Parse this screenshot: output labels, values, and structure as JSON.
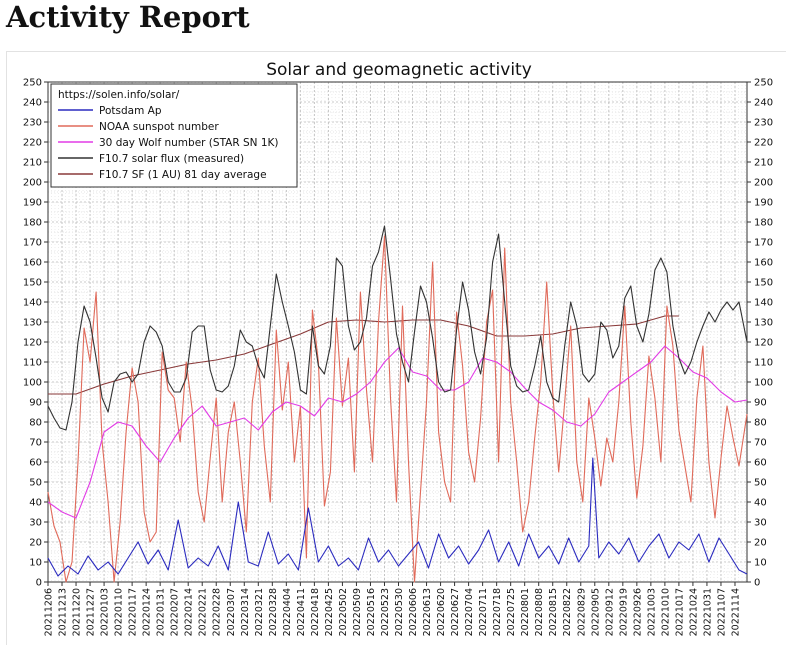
{
  "page": {
    "heading": "Activity Report"
  },
  "chart_data": {
    "type": "line",
    "title": "Solar and geomagnetic activity",
    "source_label": "https://solen.info/solar/",
    "xlabel": "",
    "ylabel": "",
    "ylim": [
      0,
      250
    ],
    "y_ticks": [
      0,
      10,
      20,
      30,
      40,
      50,
      60,
      70,
      80,
      90,
      100,
      110,
      120,
      130,
      140,
      150,
      160,
      170,
      180,
      190,
      200,
      210,
      220,
      230,
      240,
      250
    ],
    "grid": true,
    "legend_position": "top-left",
    "x_start": "2021-12-06",
    "x_end": "2022-11-20",
    "x_tick_labels": [
      "20211206",
      "20211213",
      "20211220",
      "20211227",
      "20220103",
      "20220110",
      "20220117",
      "20220124",
      "20220131",
      "20220207",
      "20220214",
      "20220221",
      "20220228",
      "20220307",
      "20220314",
      "20220321",
      "20220328",
      "20220404",
      "20220411",
      "20220418",
      "20220425",
      "20220502",
      "20220509",
      "20220516",
      "20220523",
      "20220530",
      "20220606",
      "20220613",
      "20220620",
      "20220627",
      "20220704",
      "20220711",
      "20220718",
      "20220725",
      "20220801",
      "20220808",
      "20220815",
      "20220822",
      "20220829",
      "20220905",
      "20220912",
      "20220919",
      "20220926",
      "20221003",
      "20221010",
      "20221017",
      "20221024",
      "20221031",
      "20221107",
      "20221114"
    ],
    "series": [
      {
        "name": "Potsdam Ap",
        "color": "#2b2bbf",
        "x": [
          "2021-12-06",
          "2021-12-11",
          "2021-12-16",
          "2021-12-21",
          "2021-12-26",
          "2021-12-31",
          "2022-01-05",
          "2022-01-10",
          "2022-01-15",
          "2022-01-20",
          "2022-01-25",
          "2022-01-30",
          "2022-02-04",
          "2022-02-09",
          "2022-02-14",
          "2022-02-19",
          "2022-02-24",
          "2022-03-01",
          "2022-03-06",
          "2022-03-11",
          "2022-03-16",
          "2022-03-21",
          "2022-03-26",
          "2022-03-31",
          "2022-04-05",
          "2022-04-10",
          "2022-04-15",
          "2022-04-20",
          "2022-04-25",
          "2022-04-30",
          "2022-05-05",
          "2022-05-10",
          "2022-05-15",
          "2022-05-20",
          "2022-05-25",
          "2022-05-30",
          "2022-06-04",
          "2022-06-09",
          "2022-06-14",
          "2022-06-19",
          "2022-06-24",
          "2022-06-29",
          "2022-07-04",
          "2022-07-09",
          "2022-07-14",
          "2022-07-19",
          "2022-07-24",
          "2022-07-29",
          "2022-08-03",
          "2022-08-08",
          "2022-08-13",
          "2022-08-18",
          "2022-08-23",
          "2022-08-28",
          "2022-09-02",
          "2022-09-04",
          "2022-09-07",
          "2022-09-12",
          "2022-09-17",
          "2022-09-22",
          "2022-09-27",
          "2022-10-02",
          "2022-10-07",
          "2022-10-12",
          "2022-10-17",
          "2022-10-22",
          "2022-10-27",
          "2022-11-01",
          "2022-11-06",
          "2022-11-11",
          "2022-11-16",
          "2022-11-20"
        ],
        "values": [
          12,
          3,
          8,
          4,
          13,
          6,
          10,
          4,
          12,
          20,
          9,
          16,
          6,
          31,
          7,
          12,
          8,
          18,
          6,
          40,
          10,
          8,
          25,
          9,
          14,
          6,
          37,
          10,
          18,
          8,
          12,
          6,
          22,
          10,
          16,
          8,
          14,
          20,
          7,
          24,
          12,
          18,
          9,
          16,
          26,
          10,
          20,
          8,
          24,
          12,
          18,
          9,
          22,
          10,
          18,
          62,
          12,
          20,
          14,
          22,
          10,
          18,
          24,
          12,
          20,
          16,
          24,
          10,
          22,
          14,
          6,
          4
        ]
      },
      {
        "name": "NOAA sunspot number",
        "color": "#e06a5a",
        "x": [
          "2021-12-06",
          "2021-12-09",
          "2021-12-12",
          "2021-12-15",
          "2021-12-18",
          "2021-12-21",
          "2021-12-24",
          "2021-12-27",
          "2021-12-30",
          "2022-01-02",
          "2022-01-05",
          "2022-01-08",
          "2022-01-11",
          "2022-01-14",
          "2022-01-17",
          "2022-01-20",
          "2022-01-23",
          "2022-01-26",
          "2022-01-29",
          "2022-02-01",
          "2022-02-04",
          "2022-02-07",
          "2022-02-10",
          "2022-02-13",
          "2022-02-16",
          "2022-02-19",
          "2022-02-22",
          "2022-02-25",
          "2022-02-28",
          "2022-03-03",
          "2022-03-06",
          "2022-03-09",
          "2022-03-12",
          "2022-03-15",
          "2022-03-18",
          "2022-03-21",
          "2022-03-24",
          "2022-03-27",
          "2022-03-30",
          "2022-04-02",
          "2022-04-05",
          "2022-04-08",
          "2022-04-11",
          "2022-04-14",
          "2022-04-17",
          "2022-04-20",
          "2022-04-23",
          "2022-04-26",
          "2022-04-29",
          "2022-05-02",
          "2022-05-05",
          "2022-05-08",
          "2022-05-11",
          "2022-05-14",
          "2022-05-17",
          "2022-05-20",
          "2022-05-23",
          "2022-05-26",
          "2022-05-29",
          "2022-06-01",
          "2022-06-04",
          "2022-06-07",
          "2022-06-10",
          "2022-06-13",
          "2022-06-16",
          "2022-06-19",
          "2022-06-22",
          "2022-06-25",
          "2022-06-28",
          "2022-07-01",
          "2022-07-04",
          "2022-07-07",
          "2022-07-10",
          "2022-07-13",
          "2022-07-16",
          "2022-07-19",
          "2022-07-22",
          "2022-07-25",
          "2022-07-28",
          "2022-07-31",
          "2022-08-03",
          "2022-08-06",
          "2022-08-09",
          "2022-08-12",
          "2022-08-15",
          "2022-08-18",
          "2022-08-21",
          "2022-08-24",
          "2022-08-27",
          "2022-08-30",
          "2022-09-02",
          "2022-09-05",
          "2022-09-08",
          "2022-09-11",
          "2022-09-14",
          "2022-09-17",
          "2022-09-20",
          "2022-09-23",
          "2022-09-26",
          "2022-09-29",
          "2022-10-02",
          "2022-10-05",
          "2022-10-08",
          "2022-10-11",
          "2022-10-14",
          "2022-10-17",
          "2022-10-20",
          "2022-10-23",
          "2022-10-26",
          "2022-10-29",
          "2022-11-01",
          "2022-11-04",
          "2022-11-07",
          "2022-11-10",
          "2022-11-13",
          "2022-11-16",
          "2022-11-20"
        ],
        "values": [
          45,
          28,
          20,
          0,
          10,
          60,
          127,
          110,
          145,
          70,
          40,
          0,
          30,
          75,
          107,
          90,
          35,
          20,
          25,
          115,
          96,
          92,
          70,
          110,
          86,
          45,
          30,
          62,
          92,
          40,
          75,
          90,
          60,
          25,
          90,
          112,
          68,
          40,
          126,
          86,
          110,
          60,
          88,
          12,
          136,
          110,
          38,
          55,
          132,
          88,
          112,
          55,
          145,
          96,
          60,
          130,
          173,
          92,
          40,
          138,
          60,
          0,
          45,
          90,
          160,
          75,
          50,
          40,
          135,
          108,
          65,
          50,
          82,
          130,
          146,
          60,
          167,
          90,
          60,
          25,
          40,
          72,
          100,
          150,
          95,
          55,
          90,
          128,
          60,
          40,
          92,
          72,
          48,
          72,
          60,
          90,
          138,
          80,
          42,
          68,
          113,
          92,
          60,
          138,
          118,
          76,
          58,
          40,
          92,
          118,
          60,
          32,
          62,
          88,
          72,
          58,
          84
        ]
      },
      {
        "name": "30 day Wolf number (STAR SN 1K)",
        "color": "#e23be6",
        "x": [
          "2021-12-06",
          "2021-12-13",
          "2021-12-20",
          "2021-12-27",
          "2022-01-03",
          "2022-01-10",
          "2022-01-17",
          "2022-01-24",
          "2022-01-31",
          "2022-02-07",
          "2022-02-14",
          "2022-02-21",
          "2022-02-28",
          "2022-03-07",
          "2022-03-14",
          "2022-03-21",
          "2022-03-28",
          "2022-04-04",
          "2022-04-11",
          "2022-04-18",
          "2022-04-25",
          "2022-05-02",
          "2022-05-09",
          "2022-05-16",
          "2022-05-23",
          "2022-05-30",
          "2022-06-06",
          "2022-06-13",
          "2022-06-20",
          "2022-06-27",
          "2022-07-04",
          "2022-07-11",
          "2022-07-18",
          "2022-07-25",
          "2022-08-01",
          "2022-08-08",
          "2022-08-15",
          "2022-08-22",
          "2022-08-29",
          "2022-09-05",
          "2022-09-12",
          "2022-09-19",
          "2022-09-26",
          "2022-10-03",
          "2022-10-10",
          "2022-10-17",
          "2022-10-24",
          "2022-10-31",
          "2022-11-07",
          "2022-11-14",
          "2022-11-20"
        ],
        "values": [
          40,
          35,
          32,
          50,
          75,
          80,
          78,
          68,
          60,
          72,
          82,
          88,
          78,
          80,
          82,
          76,
          85,
          90,
          88,
          83,
          92,
          90,
          94,
          100,
          110,
          117,
          105,
          103,
          96,
          96,
          100,
          112,
          110,
          105,
          97,
          90,
          86,
          80,
          78,
          84,
          95,
          100,
          105,
          110,
          118,
          112,
          105,
          102,
          95,
          90,
          91
        ]
      },
      {
        "name": "F10.7 solar flux (measured)",
        "color": "#333333",
        "x": [
          "2021-12-06",
          "2021-12-09",
          "2021-12-12",
          "2021-12-15",
          "2021-12-18",
          "2021-12-21",
          "2021-12-24",
          "2021-12-27",
          "2021-12-30",
          "2022-01-02",
          "2022-01-05",
          "2022-01-08",
          "2022-01-11",
          "2022-01-14",
          "2022-01-17",
          "2022-01-20",
          "2022-01-23",
          "2022-01-26",
          "2022-01-29",
          "2022-02-01",
          "2022-02-04",
          "2022-02-07",
          "2022-02-10",
          "2022-02-13",
          "2022-02-16",
          "2022-02-19",
          "2022-02-22",
          "2022-02-25",
          "2022-02-28",
          "2022-03-03",
          "2022-03-06",
          "2022-03-09",
          "2022-03-12",
          "2022-03-15",
          "2022-03-18",
          "2022-03-21",
          "2022-03-24",
          "2022-03-27",
          "2022-03-30",
          "2022-04-02",
          "2022-04-05",
          "2022-04-08",
          "2022-04-11",
          "2022-04-14",
          "2022-04-17",
          "2022-04-20",
          "2022-04-23",
          "2022-04-26",
          "2022-04-29",
          "2022-05-02",
          "2022-05-05",
          "2022-05-08",
          "2022-05-11",
          "2022-05-14",
          "2022-05-17",
          "2022-05-20",
          "2022-05-23",
          "2022-05-26",
          "2022-05-29",
          "2022-06-01",
          "2022-06-04",
          "2022-06-07",
          "2022-06-10",
          "2022-06-13",
          "2022-06-16",
          "2022-06-19",
          "2022-06-22",
          "2022-06-25",
          "2022-06-28",
          "2022-07-01",
          "2022-07-04",
          "2022-07-07",
          "2022-07-10",
          "2022-07-13",
          "2022-07-16",
          "2022-07-19",
          "2022-07-22",
          "2022-07-25",
          "2022-07-28",
          "2022-07-31",
          "2022-08-03",
          "2022-08-06",
          "2022-08-09",
          "2022-08-12",
          "2022-08-15",
          "2022-08-18",
          "2022-08-21",
          "2022-08-24",
          "2022-08-27",
          "2022-08-30",
          "2022-09-02",
          "2022-09-05",
          "2022-09-08",
          "2022-09-11",
          "2022-09-14",
          "2022-09-17",
          "2022-09-20",
          "2022-09-23",
          "2022-09-26",
          "2022-09-29",
          "2022-10-02",
          "2022-10-05",
          "2022-10-08",
          "2022-10-11",
          "2022-10-14",
          "2022-10-17",
          "2022-10-20",
          "2022-10-23",
          "2022-10-26",
          "2022-10-29",
          "2022-11-01",
          "2022-11-04",
          "2022-11-07",
          "2022-11-10",
          "2022-11-13",
          "2022-11-16",
          "2022-11-20"
        ],
        "values": [
          88,
          82,
          77,
          76,
          90,
          120,
          138,
          130,
          112,
          92,
          85,
          100,
          104,
          105,
          100,
          104,
          120,
          128,
          125,
          118,
          100,
          95,
          95,
          102,
          125,
          128,
          128,
          106,
          96,
          95,
          98,
          108,
          126,
          120,
          118,
          108,
          102,
          128,
          154,
          140,
          128,
          115,
          96,
          94,
          128,
          108,
          104,
          118,
          162,
          158,
          128,
          116,
          120,
          132,
          158,
          165,
          178,
          152,
          124,
          110,
          100,
          125,
          148,
          140,
          122,
          100,
          95,
          96,
          126,
          150,
          136,
          115,
          104,
          122,
          160,
          174,
          140,
          108,
          98,
          95,
          96,
          108,
          123,
          100,
          92,
          90,
          118,
          140,
          128,
          104,
          100,
          104,
          130,
          126,
          112,
          118,
          142,
          148,
          128,
          120,
          134,
          156,
          162,
          155,
          128,
          112,
          104,
          110,
          120,
          128,
          135,
          130,
          136,
          140,
          136,
          140,
          120
        ]
      },
      {
        "name": "F10.7 SF (1 AU) 81 day average",
        "color": "#8a3a3a",
        "x": [
          "2021-12-06",
          "2021-12-20",
          "2022-01-03",
          "2022-01-17",
          "2022-01-31",
          "2022-02-14",
          "2022-02-28",
          "2022-03-14",
          "2022-03-28",
          "2022-04-11",
          "2022-04-25",
          "2022-05-09",
          "2022-05-23",
          "2022-06-06",
          "2022-06-20",
          "2022-07-04",
          "2022-07-18",
          "2022-08-01",
          "2022-08-15",
          "2022-08-29",
          "2022-09-12",
          "2022-09-26",
          "2022-10-10",
          "2022-10-17"
        ],
        "values": [
          94,
          94,
          99,
          103,
          106,
          109,
          111,
          114,
          119,
          124,
          130,
          131,
          130,
          131,
          131,
          128,
          123,
          123,
          124,
          127,
          128,
          129,
          133,
          133
        ]
      }
    ]
  }
}
